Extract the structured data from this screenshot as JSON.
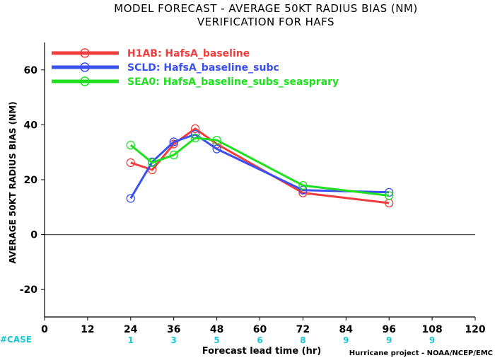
{
  "colors": {
    "case": "#19c6d1",
    "axis": "#000000",
    "zero_line": "#555555"
  },
  "chart_data": {
    "type": "line",
    "title": "MODEL FORECAST - AVERAGE 50KT RADIUS BIAS (NM)",
    "subtitle": "VERIFICATION FOR HAFS",
    "xlabel": "Forecast lead time (hr)",
    "ylabel": "AVERAGE 50KT RADIUS BIAS (NM)",
    "xlim": [
      0,
      120
    ],
    "ylim": [
      -30,
      70
    ],
    "xticks": [
      0,
      12,
      24,
      36,
      48,
      60,
      72,
      84,
      96,
      108,
      120
    ],
    "yticks": [
      -20,
      0,
      20,
      40,
      60
    ],
    "zero_line": true,
    "legend_position": "top-left",
    "credit": "Hurricane project - NOAA/NCEP/EMC",
    "case_label": "#CASE",
    "case_counts": [
      {
        "x": 24,
        "n": "1"
      },
      {
        "x": 36,
        "n": "3"
      },
      {
        "x": 48,
        "n": "5"
      },
      {
        "x": 60,
        "n": "6"
      },
      {
        "x": 72,
        "n": "8"
      },
      {
        "x": 84,
        "n": "9"
      },
      {
        "x": 96,
        "n": "9"
      },
      {
        "x": 108,
        "n": "9"
      }
    ],
    "series": [
      {
        "name": "H1AB: HafsA_baseline",
        "color": "#f03c3c",
        "x": [
          24,
          30,
          36,
          42,
          48,
          72,
          96
        ],
        "y": [
          26.2,
          23.6,
          33.0,
          38.6,
          33.0,
          15.2,
          11.5
        ]
      },
      {
        "name": "SCLD: HafsA_baseline_subc",
        "color": "#3a50f0",
        "x": [
          24,
          30,
          36,
          42,
          48,
          72,
          96
        ],
        "y": [
          13.2,
          26.5,
          33.8,
          36.5,
          31.2,
          16.2,
          15.4
        ]
      },
      {
        "name": "SEA0: HafsA_baseline_subs_seasprary",
        "color": "#1ee01e",
        "x": [
          24,
          30,
          36,
          42,
          48,
          72,
          96
        ],
        "y": [
          32.6,
          26.2,
          29.0,
          35.2,
          34.4,
          17.9,
          14.2
        ]
      }
    ]
  }
}
